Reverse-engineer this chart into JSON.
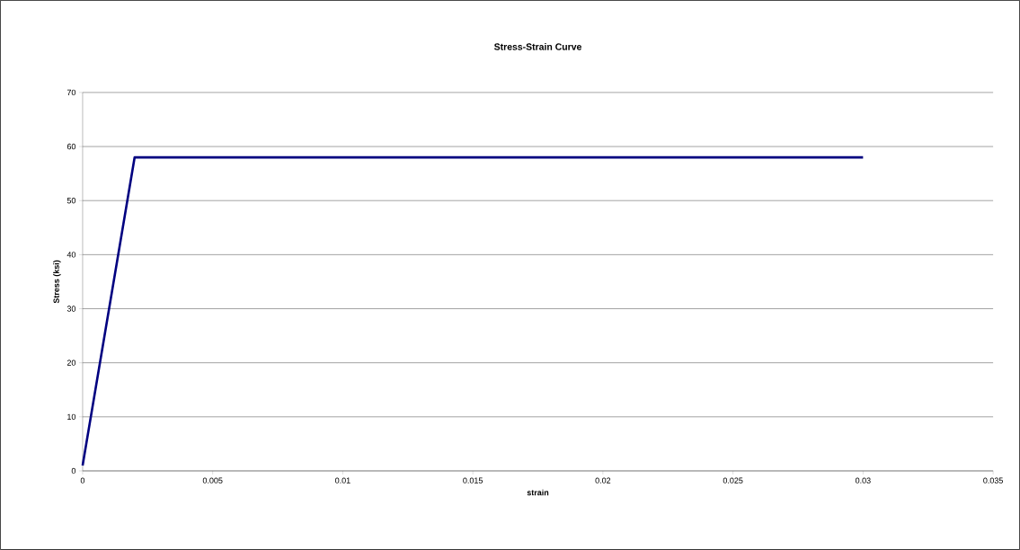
{
  "chart_data": {
    "type": "line",
    "title": "Stress-Strain Curve",
    "xlabel": "strain",
    "ylabel": "Stress (ksi)",
    "x": [
      0,
      0.002,
      0.03
    ],
    "series": [
      {
        "color": "#000080",
        "values": [
          1,
          58,
          58
        ]
      }
    ],
    "xlim": [
      0,
      0.035
    ],
    "xticks": [
      0,
      0.005,
      0.01,
      0.015,
      0.02,
      0.025,
      0.03,
      0.035
    ],
    "ylim": [
      0,
      70
    ],
    "yticks": [
      0,
      10,
      20,
      30,
      40,
      50,
      60,
      70
    ],
    "grid": "y",
    "marker": "none",
    "line_style": "solid"
  }
}
